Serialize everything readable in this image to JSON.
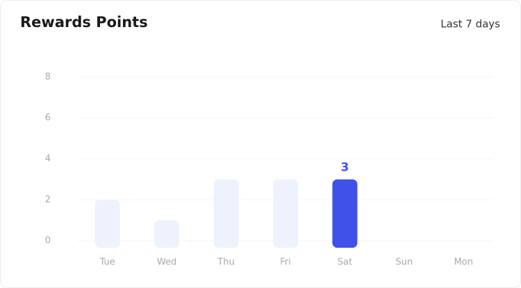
{
  "chart_data": {
    "type": "bar",
    "title": "Rewards Points",
    "period": "Last 7 days",
    "categories": [
      "Tue",
      "Wed",
      "Thu",
      "Fri",
      "Sat",
      "Sun",
      "Mon"
    ],
    "values": [
      2,
      1,
      3,
      3,
      3,
      0,
      0
    ],
    "color": "#eef2fd",
    "highlight": "Sat",
    "highlight_color": "#3f51e8",
    "current": "Mon",
    "ylim": [
      0,
      8
    ],
    "yticks": [
      0,
      2,
      4,
      6,
      8
    ],
    "grid": true
  }
}
